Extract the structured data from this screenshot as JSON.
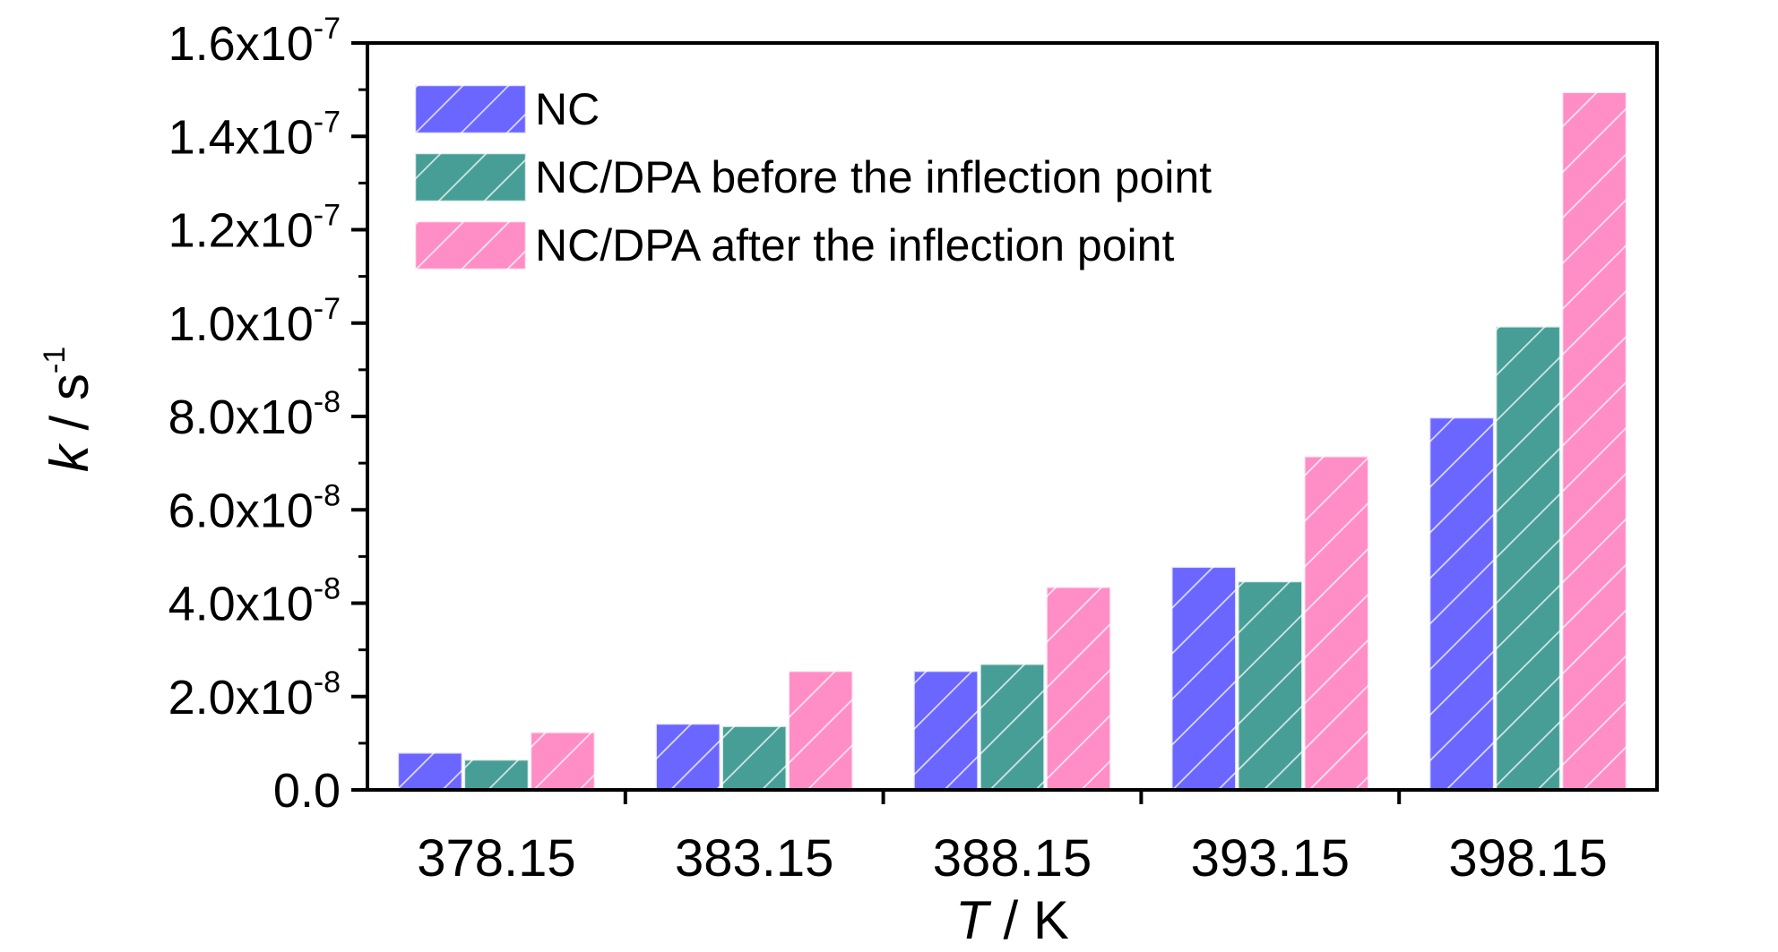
{
  "chart_data": {
    "type": "bar",
    "categories": [
      "378.15",
      "383.15",
      "388.15",
      "393.15",
      "398.15"
    ],
    "series": [
      {
        "name": "NC",
        "color": "#6b66ff",
        "values": [
          8e-09,
          1.42e-08,
          2.55e-08,
          4.78e-08,
          7.98e-08
        ]
      },
      {
        "name": "NC/DPA before the inflection point",
        "color": "#479e96",
        "values": [
          6.5e-09,
          1.37e-08,
          2.7e-08,
          4.47e-08,
          9.93e-08
        ]
      },
      {
        "name": "NC/DPA after the inflection point",
        "color": "#ff8ec6",
        "values": [
          1.24e-08,
          2.55e-08,
          4.35e-08,
          7.15e-08,
          1.495e-07
        ]
      }
    ],
    "ylim": [
      0,
      1.6e-07
    ],
    "yticks": [
      {
        "mantissa": "0.0",
        "exp": ""
      },
      {
        "mantissa": "2.0x10",
        "exp": "-8"
      },
      {
        "mantissa": "4.0x10",
        "exp": "-8"
      },
      {
        "mantissa": "6.0x10",
        "exp": "-8"
      },
      {
        "mantissa": "8.0x10",
        "exp": "-8"
      },
      {
        "mantissa": "1.0x10",
        "exp": "-7"
      },
      {
        "mantissa": "1.2x10",
        "exp": "-7"
      },
      {
        "mantissa": "1.4x10",
        "exp": "-7"
      },
      {
        "mantissa": "1.6x10",
        "exp": "-7"
      }
    ],
    "xlabel": {
      "var": "T",
      "unit": " / K"
    },
    "ylabel": {
      "var": "k",
      "unit": " / s",
      "exp": "-1"
    },
    "legend_position": "top-left",
    "grid": false,
    "pattern": "diagonal-hatch"
  }
}
